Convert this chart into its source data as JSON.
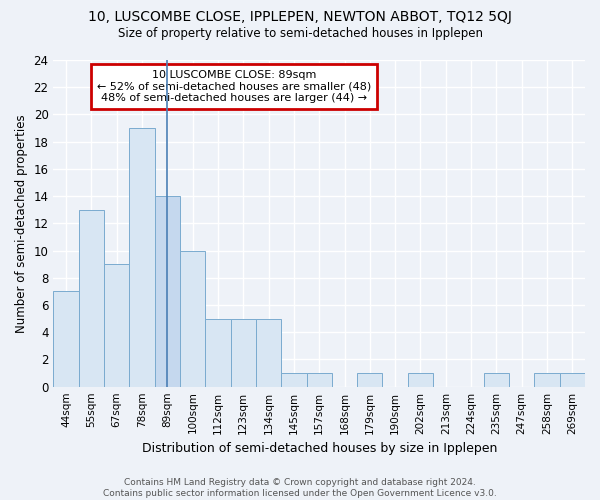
{
  "title": "10, LUSCOMBE CLOSE, IPPLEPEN, NEWTON ABBOT, TQ12 5QJ",
  "subtitle": "Size of property relative to semi-detached houses in Ipplepen",
  "xlabel": "Distribution of semi-detached houses by size in Ipplepen",
  "ylabel": "Number of semi-detached properties",
  "categories": [
    "44sqm",
    "55sqm",
    "67sqm",
    "78sqm",
    "89sqm",
    "100sqm",
    "112sqm",
    "123sqm",
    "134sqm",
    "145sqm",
    "157sqm",
    "168sqm",
    "179sqm",
    "190sqm",
    "202sqm",
    "213sqm",
    "224sqm",
    "235sqm",
    "247sqm",
    "258sqm",
    "269sqm"
  ],
  "values": [
    7,
    13,
    9,
    19,
    14,
    10,
    5,
    5,
    5,
    1,
    1,
    0,
    1,
    0,
    1,
    0,
    0,
    1,
    0,
    1,
    1
  ],
  "highlight_index": 4,
  "highlight_color": "#c5d8ee",
  "bar_color": "#d8e6f3",
  "bar_edge_color": "#7aabcf",
  "highlight_line_color": "#4a7fb5",
  "annotation_text": "10 LUSCOMBE CLOSE: 89sqm\n← 52% of semi-detached houses are smaller (48)\n48% of semi-detached houses are larger (44) →",
  "annotation_box_color": "#ffffff",
  "annotation_box_edge": "#cc0000",
  "ylim": [
    0,
    24
  ],
  "yticks": [
    0,
    2,
    4,
    6,
    8,
    10,
    12,
    14,
    16,
    18,
    20,
    22,
    24
  ],
  "footer": "Contains HM Land Registry data © Crown copyright and database right 2024.\nContains public sector information licensed under the Open Government Licence v3.0.",
  "background_color": "#eef2f8",
  "grid_color": "#ffffff"
}
